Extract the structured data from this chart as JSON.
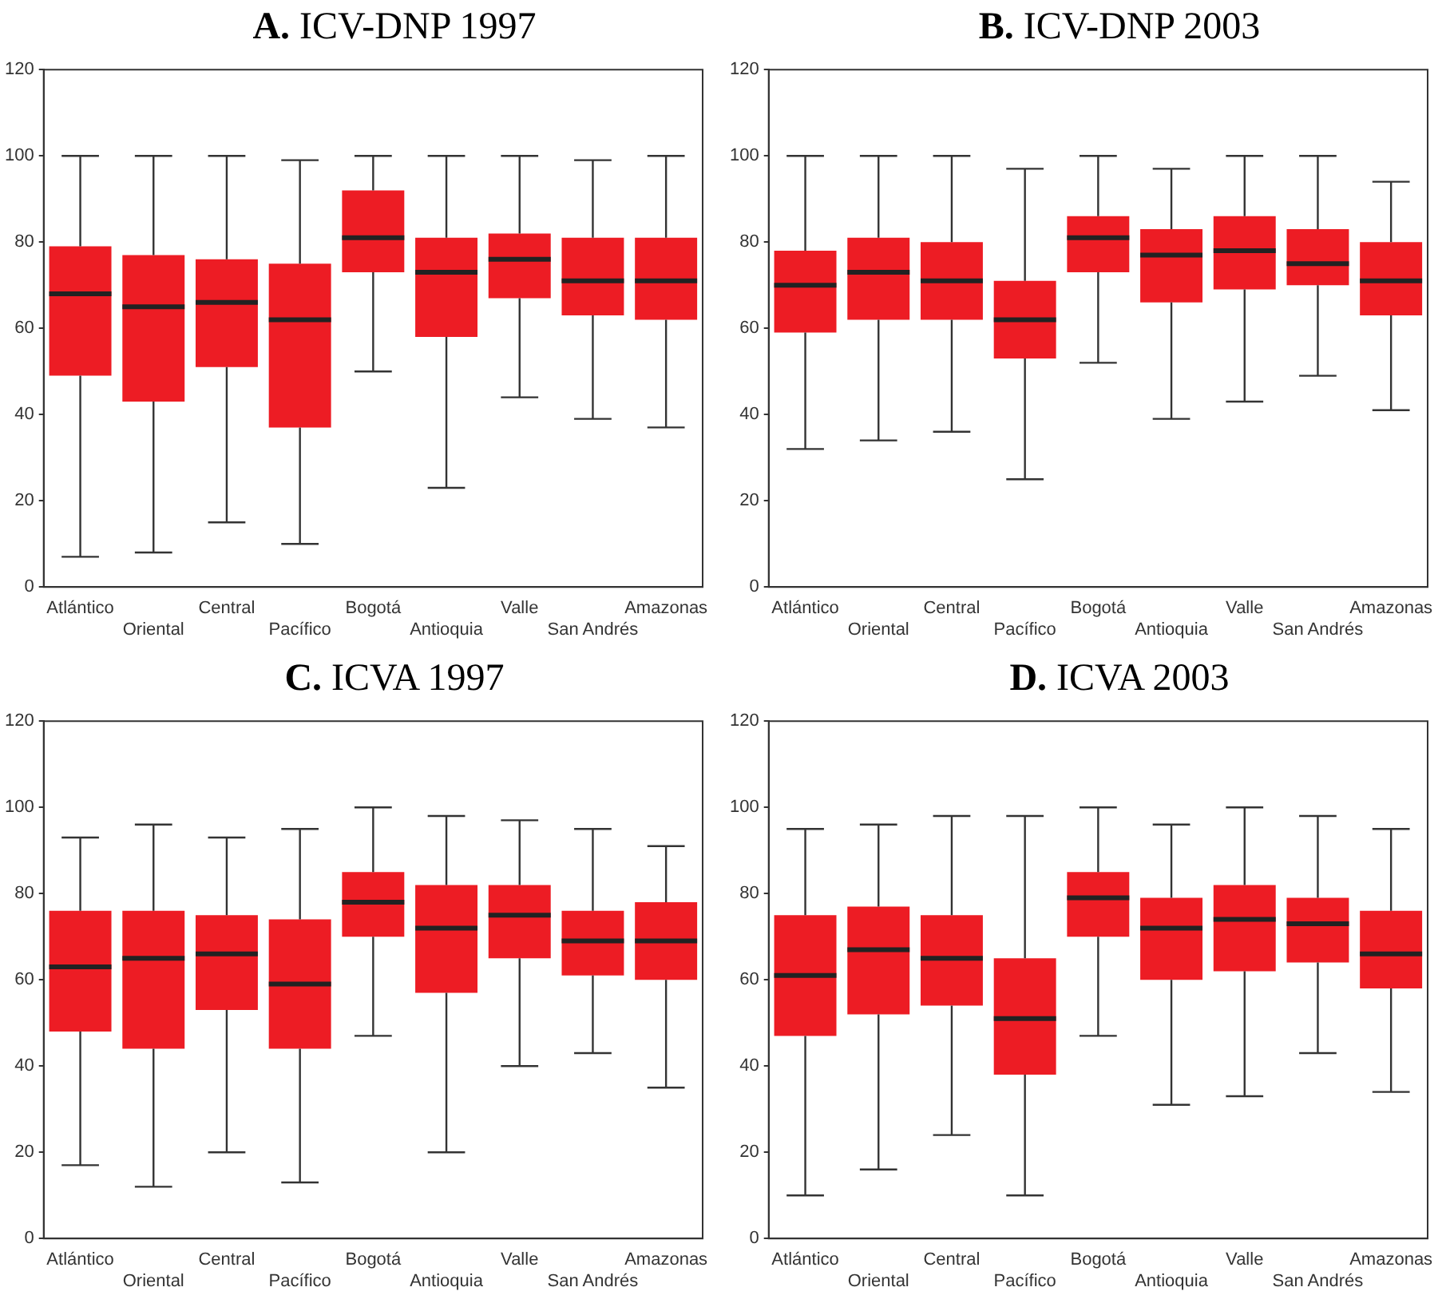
{
  "chart_data": [
    {
      "type": "box",
      "title": "A. ICV-DNP 1997",
      "categories": [
        "Atlántico",
        "Oriental",
        "Central",
        "Pacífico",
        "Bogotá",
        "Antioquia",
        "Valle",
        "San Andrés",
        "Amazonas"
      ],
      "color": "#ed1c24",
      "ylim": [
        0,
        120
      ],
      "yticks": [
        0,
        20,
        40,
        60,
        80,
        100,
        120
      ],
      "grid": false,
      "boxes": [
        {
          "low": 7,
          "q1": 49,
          "median": 68,
          "q3": 79,
          "high": 100
        },
        {
          "low": 8,
          "q1": 43,
          "median": 65,
          "q3": 77,
          "high": 100
        },
        {
          "low": 15,
          "q1": 51,
          "median": 66,
          "q3": 76,
          "high": 100
        },
        {
          "low": 10,
          "q1": 37,
          "median": 62,
          "q3": 75,
          "high": 99
        },
        {
          "low": 50,
          "q1": 73,
          "median": 81,
          "q3": 92,
          "high": 100
        },
        {
          "low": 23,
          "q1": 58,
          "median": 73,
          "q3": 81,
          "high": 100
        },
        {
          "low": 44,
          "q1": 67,
          "median": 76,
          "q3": 82,
          "high": 100
        },
        {
          "low": 39,
          "q1": 63,
          "median": 71,
          "q3": 81,
          "high": 99
        },
        {
          "low": 37,
          "q1": 62,
          "median": 71,
          "q3": 81,
          "high": 100
        }
      ]
    },
    {
      "type": "box",
      "title": "B. ICV-DNP 2003",
      "categories": [
        "Atlántico",
        "Oriental",
        "Central",
        "Pacífico",
        "Bogotá",
        "Antioquia",
        "Valle",
        "San Andrés",
        "Amazonas"
      ],
      "color": "#ed1c24",
      "ylim": [
        0,
        120
      ],
      "yticks": [
        0,
        20,
        40,
        60,
        80,
        100,
        120
      ],
      "grid": false,
      "boxes": [
        {
          "low": 32,
          "q1": 59,
          "median": 70,
          "q3": 78,
          "high": 100
        },
        {
          "low": 34,
          "q1": 62,
          "median": 73,
          "q3": 81,
          "high": 100
        },
        {
          "low": 36,
          "q1": 62,
          "median": 71,
          "q3": 80,
          "high": 100
        },
        {
          "low": 25,
          "q1": 53,
          "median": 62,
          "q3": 71,
          "high": 97
        },
        {
          "low": 52,
          "q1": 73,
          "median": 81,
          "q3": 86,
          "high": 100
        },
        {
          "low": 39,
          "q1": 66,
          "median": 77,
          "q3": 83,
          "high": 97
        },
        {
          "low": 43,
          "q1": 69,
          "median": 78,
          "q3": 86,
          "high": 100
        },
        {
          "low": 49,
          "q1": 70,
          "median": 75,
          "q3": 83,
          "high": 100
        },
        {
          "low": 41,
          "q1": 63,
          "median": 71,
          "q3": 80,
          "high": 94
        }
      ]
    },
    {
      "type": "box",
      "title": "C. ICVA 1997",
      "categories": [
        "Atlántico",
        "Oriental",
        "Central",
        "Pacífico",
        "Bogotá",
        "Antioquia",
        "Valle",
        "San Andrés",
        "Amazonas"
      ],
      "color": "#ed1c24",
      "ylim": [
        0,
        120
      ],
      "yticks": [
        0,
        20,
        40,
        60,
        80,
        100,
        120
      ],
      "grid": false,
      "boxes": [
        {
          "low": 17,
          "q1": 48,
          "median": 63,
          "q3": 76,
          "high": 93
        },
        {
          "low": 12,
          "q1": 44,
          "median": 65,
          "q3": 76,
          "high": 96
        },
        {
          "low": 20,
          "q1": 53,
          "median": 66,
          "q3": 75,
          "high": 93
        },
        {
          "low": 13,
          "q1": 44,
          "median": 59,
          "q3": 74,
          "high": 95
        },
        {
          "low": 47,
          "q1": 70,
          "median": 78,
          "q3": 85,
          "high": 100
        },
        {
          "low": 20,
          "q1": 57,
          "median": 72,
          "q3": 82,
          "high": 98
        },
        {
          "low": 40,
          "q1": 65,
          "median": 75,
          "q3": 82,
          "high": 97
        },
        {
          "low": 43,
          "q1": 61,
          "median": 69,
          "q3": 76,
          "high": 95
        },
        {
          "low": 35,
          "q1": 60,
          "median": 69,
          "q3": 78,
          "high": 91
        }
      ]
    },
    {
      "type": "box",
      "title": "D. ICVA 2003",
      "categories": [
        "Atlántico",
        "Oriental",
        "Central",
        "Pacífico",
        "Bogotá",
        "Antioquia",
        "Valle",
        "San Andrés",
        "Amazonas"
      ],
      "color": "#ed1c24",
      "ylim": [
        0,
        120
      ],
      "yticks": [
        0,
        20,
        40,
        60,
        80,
        100,
        120
      ],
      "grid": false,
      "boxes": [
        {
          "low": 10,
          "q1": 47,
          "median": 61,
          "q3": 75,
          "high": 95
        },
        {
          "low": 16,
          "q1": 52,
          "median": 67,
          "q3": 77,
          "high": 96
        },
        {
          "low": 24,
          "q1": 54,
          "median": 65,
          "q3": 75,
          "high": 98
        },
        {
          "low": 10,
          "q1": 38,
          "median": 51,
          "q3": 65,
          "high": 98
        },
        {
          "low": 47,
          "q1": 70,
          "median": 79,
          "q3": 85,
          "high": 100
        },
        {
          "low": 31,
          "q1": 60,
          "median": 72,
          "q3": 79,
          "high": 96
        },
        {
          "low": 33,
          "q1": 62,
          "median": 74,
          "q3": 82,
          "high": 100
        },
        {
          "low": 43,
          "q1": 64,
          "median": 73,
          "q3": 79,
          "high": 98
        },
        {
          "low": 34,
          "q1": 58,
          "median": 66,
          "q3": 76,
          "high": 95
        }
      ]
    }
  ]
}
